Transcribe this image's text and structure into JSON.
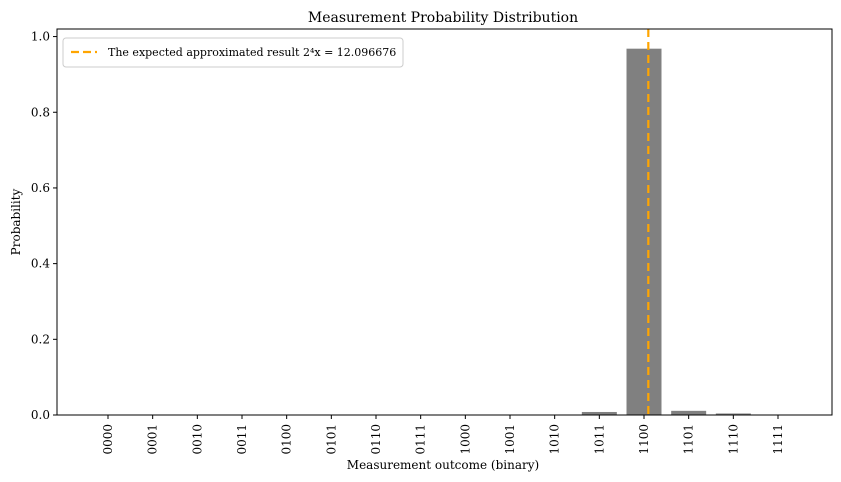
{
  "chart_data": {
    "type": "bar",
    "title": "Measurement Probability Distribution",
    "xlabel": "Measurement outcome (binary)",
    "ylabel": "Probability",
    "ylim": [
      0,
      1.02
    ],
    "yticks": [
      "0.0",
      "0.2",
      "0.4",
      "0.6",
      "0.8",
      "1.0"
    ],
    "ytick_values": [
      0,
      0.2,
      0.4,
      0.6,
      0.8,
      1.0
    ],
    "categories": [
      "0000",
      "0001",
      "0010",
      "0011",
      "0100",
      "0101",
      "0110",
      "0111",
      "1000",
      "1001",
      "1010",
      "1011",
      "1100",
      "1101",
      "1110",
      "1111"
    ],
    "values": [
      0.0005,
      0.0005,
      0.0005,
      0.0005,
      0.0005,
      0.0005,
      0.0005,
      0.0005,
      0.0005,
      0.0005,
      0.001,
      0.008,
      0.968,
      0.011,
      0.004,
      0.001
    ],
    "bar_color": "#808080",
    "expected_line": {
      "x_value": 12.096676,
      "color": "#FFA500",
      "label": "The expected approximated result 2⁴x = 12.096676"
    },
    "legend_position": "upper-left",
    "grid": false
  }
}
